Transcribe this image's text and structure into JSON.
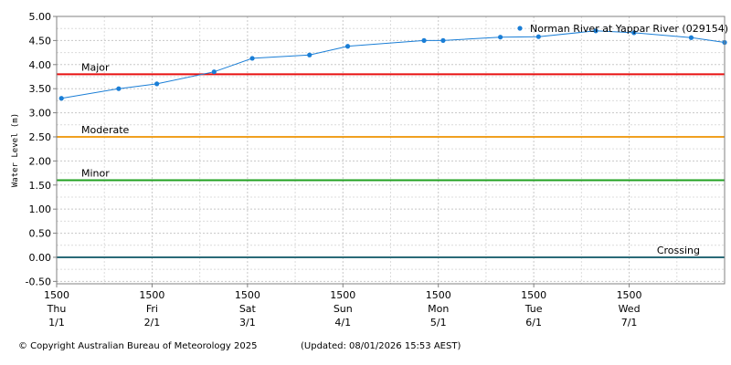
{
  "chart_data": {
    "type": "line",
    "title": "",
    "ylabel": "Water Level (m)",
    "xlabel": "",
    "ylim": [
      -0.55,
      5.0
    ],
    "xlim": [
      0,
      7.0
    ],
    "y_ticks": [
      5.0,
      4.5,
      4.0,
      3.5,
      3.0,
      2.5,
      2.0,
      1.5,
      1.0,
      0.5,
      0.0,
      -0.5
    ],
    "y_tick_labels": [
      "5.00",
      "4.50",
      "4.00",
      "3.50",
      "3.00",
      "2.50",
      "2.00",
      "1.50",
      "1.00",
      "0.50",
      "0.00",
      "-0.50"
    ],
    "x_ticks": [
      {
        "x": 0,
        "time": "1500",
        "day": "Thu",
        "date": "1/1"
      },
      {
        "x": 1,
        "time": "1500",
        "day": "Fri",
        "date": "2/1"
      },
      {
        "x": 2,
        "time": "1500",
        "day": "Sat",
        "date": "3/1"
      },
      {
        "x": 3,
        "time": "1500",
        "day": "Sun",
        "date": "4/1"
      },
      {
        "x": 4,
        "time": "1500",
        "day": "Mon",
        "date": "5/1"
      },
      {
        "x": 5,
        "time": "1500",
        "day": "Tue",
        "date": "6/1"
      },
      {
        "x": 6,
        "time": "1500",
        "day": "Wed",
        "date": "7/1"
      }
    ],
    "grid": true,
    "legend_position": "top-right",
    "series": [
      {
        "name": "Norman River at Yappar River (029154)",
        "color": "#1a7ed6",
        "points": [
          {
            "x": 0.05,
            "y": 3.3
          },
          {
            "x": 0.65,
            "y": 3.5
          },
          {
            "x": 1.05,
            "y": 3.6
          },
          {
            "x": 1.65,
            "y": 3.85
          },
          {
            "x": 2.05,
            "y": 4.13
          },
          {
            "x": 2.65,
            "y": 4.2
          },
          {
            "x": 3.05,
            "y": 4.38
          },
          {
            "x": 3.85,
            "y": 4.5
          },
          {
            "x": 4.05,
            "y": 4.5
          },
          {
            "x": 4.65,
            "y": 4.57
          },
          {
            "x": 5.05,
            "y": 4.58
          },
          {
            "x": 5.65,
            "y": 4.7
          },
          {
            "x": 6.05,
            "y": 4.66
          },
          {
            "x": 6.65,
            "y": 4.56
          },
          {
            "x": 7.0,
            "y": 4.46
          }
        ]
      }
    ],
    "thresholds": [
      {
        "label": "Major",
        "y": 3.8,
        "color": "#e81010"
      },
      {
        "label": "Moderate",
        "y": 2.5,
        "color": "#f0a020"
      },
      {
        "label": "Minor",
        "y": 1.6,
        "color": "#20a020"
      },
      {
        "label": "Crossing",
        "y": 0.0,
        "color": "#2a6a78"
      }
    ]
  },
  "footer": {
    "copyright": "© Copyright Australian Bureau of Meteorology 2025",
    "updated": "(Updated: 08/01/2026 15:53 AEST)"
  }
}
